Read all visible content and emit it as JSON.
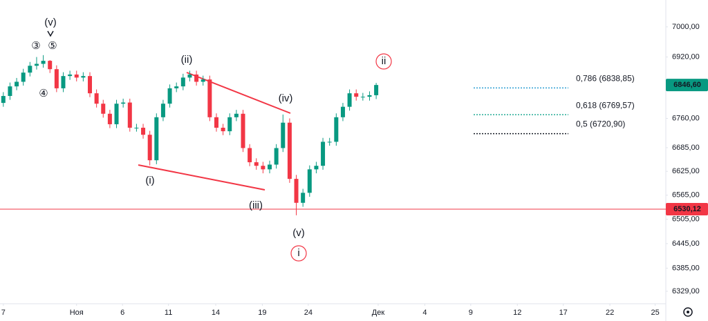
{
  "chart_data": {
    "type": "candlestick",
    "x": [
      0,
      1,
      2,
      3,
      4,
      5,
      6,
      7,
      8,
      9,
      10,
      11,
      12,
      13,
      14,
      15,
      16,
      17,
      18,
      19,
      20,
      21,
      22,
      23,
      24,
      25,
      26,
      27,
      28,
      29,
      30,
      31,
      32,
      33,
      34,
      35,
      36,
      37,
      38,
      39,
      40,
      41,
      42,
      43,
      44,
      45,
      46,
      47,
      48,
      49,
      50,
      51,
      52,
      53,
      54,
      55,
      56
    ],
    "open": [
      6800,
      6818,
      6843,
      6855,
      6879,
      6897,
      6902,
      6910,
      6888,
      6838,
      6870,
      6874,
      6866,
      6870,
      6825,
      6798,
      6772,
      6745,
      6798,
      6801,
      6736,
      6736,
      6718,
      6653,
      6763,
      6798,
      6838,
      6843,
      6866,
      6874,
      6855,
      6861,
      6763,
      6736,
      6727,
      6763,
      6772,
      6684,
      6648,
      6639,
      6630,
      6642,
      6684,
      6749,
      6606,
      6546,
      6571,
      6630,
      6639,
      6700,
      6700,
      6763,
      6790,
      6825,
      6816,
      6816,
      6820
    ],
    "high": [
      6828,
      6853,
      6865,
      6889,
      6907,
      6920,
      6925,
      6912,
      6898,
      6880,
      6884,
      6884,
      6880,
      6880,
      6835,
      6808,
      6782,
      6808,
      6811,
      6811,
      6746,
      6746,
      6728,
      6773,
      6808,
      6848,
      6853,
      6876,
      6884,
      6884,
      6871,
      6871,
      6773,
      6746,
      6773,
      6782,
      6782,
      6694,
      6658,
      6649,
      6652,
      6694,
      6770,
      6760,
      6616,
      6581,
      6640,
      6649,
      6710,
      6710,
      6773,
      6800,
      6835,
      6835,
      6826,
      6830,
      6852
    ],
    "low": [
      6790,
      6808,
      6833,
      6845,
      6869,
      6887,
      6892,
      6878,
      6828,
      6828,
      6860,
      6856,
      6856,
      6815,
      6788,
      6762,
      6735,
      6735,
      6788,
      6726,
      6726,
      6708,
      6640,
      6643,
      6753,
      6788,
      6828,
      6833,
      6856,
      6845,
      6845,
      6753,
      6726,
      6717,
      6717,
      6753,
      6674,
      6638,
      6629,
      6620,
      6620,
      6632,
      6674,
      6596,
      6515,
      6536,
      6561,
      6620,
      6629,
      6690,
      6690,
      6753,
      6780,
      6806,
      6806,
      6806,
      6810
    ],
    "close": [
      6818,
      6843,
      6855,
      6879,
      6897,
      6902,
      6910,
      6888,
      6838,
      6870,
      6874,
      6866,
      6870,
      6825,
      6798,
      6772,
      6745,
      6798,
      6801,
      6736,
      6736,
      6718,
      6653,
      6763,
      6798,
      6838,
      6843,
      6866,
      6874,
      6855,
      6861,
      6763,
      6736,
      6727,
      6763,
      6772,
      6684,
      6648,
      6639,
      6630,
      6642,
      6684,
      6749,
      6606,
      6546,
      6571,
      6630,
      6639,
      6700,
      6700,
      6763,
      6790,
      6825,
      6816,
      6816,
      6820,
      6846.6
    ],
    "up_color": "#089981",
    "down_color": "#f23645",
    "xlim": [
      -0.5,
      99.5
    ],
    "xticks": [
      {
        "value": 0,
        "label": "7"
      },
      {
        "value": 11,
        "label": "Ноя"
      },
      {
        "value": 17.9,
        "label": "6"
      },
      {
        "value": 24.8,
        "label": "11"
      },
      {
        "value": 31.9,
        "label": "14"
      },
      {
        "value": 38.9,
        "label": "19"
      },
      {
        "value": 45.8,
        "label": "24"
      },
      {
        "value": 56.3,
        "label": "Дек"
      },
      {
        "value": 63.3,
        "label": "4"
      },
      {
        "value": 70.2,
        "label": "9"
      },
      {
        "value": 77.2,
        "label": "12"
      },
      {
        "value": 84.1,
        "label": "17"
      },
      {
        "value": 91.1,
        "label": "22"
      },
      {
        "value": 97.9,
        "label": "25"
      }
    ],
    "ylim": [
      6299,
      7072
    ],
    "log_scale": true,
    "grid": false,
    "yticks": [
      {
        "value": 7000,
        "label": "7000,00"
      },
      {
        "value": 6920,
        "label": "6920,00"
      },
      {
        "value": 6760,
        "label": "6760,00"
      },
      {
        "value": 6685,
        "label": "6685,00"
      },
      {
        "value": 6625,
        "label": "6625,00"
      },
      {
        "value": 6565,
        "label": "6565,00"
      },
      {
        "value": 6505,
        "label": "6505,00"
      },
      {
        "value": 6445,
        "label": "6445,00"
      },
      {
        "value": 6385,
        "label": "6385,00"
      },
      {
        "value": 6329,
        "label": "6329,00"
      }
    ],
    "price_lines": [
      {
        "value": 6846.6,
        "label": "6846,60",
        "color": "#089981",
        "line": false
      },
      {
        "value": 6530.12,
        "label": "6530,12",
        "color": "#f23645",
        "line": true
      }
    ],
    "levels": [
      {
        "value": 6838.85,
        "label": "0,786 (6838,85)",
        "color": "#2b9fd4"
      },
      {
        "value": 6769.57,
        "label": "0,618 (6769,57)",
        "color": "#22ab94"
      },
      {
        "value": 6720.9,
        "label": "0,5 (6720,90)",
        "color": "#131722"
      }
    ],
    "annotations": [
      {
        "text": "(v)",
        "color": "#131722"
      },
      {
        "text": "③",
        "color": "#131722"
      },
      {
        "text": "⑤",
        "color": "#131722"
      },
      {
        "text": "④",
        "color": "#131722"
      },
      {
        "text": "(ii)",
        "color": "#f23645"
      },
      {
        "text": "(iv)",
        "color": "#f23645"
      },
      {
        "text": "(i)",
        "color": "#f23645"
      },
      {
        "text": "(iii)",
        "color": "#f23645"
      },
      {
        "text": "(v)",
        "color": "#f23645"
      },
      {
        "text": "i",
        "color": "#f23645",
        "circled": true
      },
      {
        "text": "ii",
        "color": "#f23645",
        "circled": true
      }
    ]
  }
}
